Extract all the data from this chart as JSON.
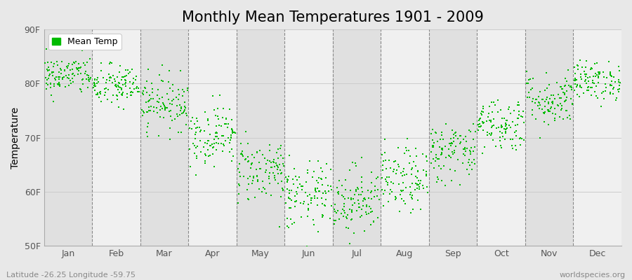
{
  "title": "Monthly Mean Temperatures 1901 - 2009",
  "ylabel": "Temperature",
  "xlabel": "",
  "ylim": [
    50,
    90
  ],
  "yticks": [
    50,
    60,
    70,
    80,
    90
  ],
  "ytick_labels": [
    "50F",
    "60F",
    "70F",
    "80F",
    "90F"
  ],
  "months": [
    "Jan",
    "Feb",
    "Mar",
    "Apr",
    "May",
    "Jun",
    "Jul",
    "Aug",
    "Sep",
    "Oct",
    "Nov",
    "Dec"
  ],
  "dot_color": "#00BB00",
  "dot_size": 3,
  "background_color": "#e8e8e8",
  "plot_bg_light": "#f0f0f0",
  "plot_bg_dark": "#e0e0e0",
  "grid_color": "#888888",
  "legend_label": "Mean Temp",
  "footer_left": "Latitude -26.25 Longitude -59.75",
  "footer_right": "worldspecies.org",
  "title_fontsize": 15,
  "label_fontsize": 10,
  "tick_fontsize": 9,
  "monthly_means": [
    81.5,
    79.5,
    76.5,
    70.5,
    64.0,
    59.0,
    58.5,
    62.0,
    67.5,
    72.5,
    77.0,
    80.5
  ],
  "monthly_stds": [
    1.8,
    2.0,
    2.5,
    2.8,
    3.0,
    3.2,
    3.2,
    3.0,
    2.8,
    2.5,
    2.5,
    1.8
  ],
  "n_years": 109
}
